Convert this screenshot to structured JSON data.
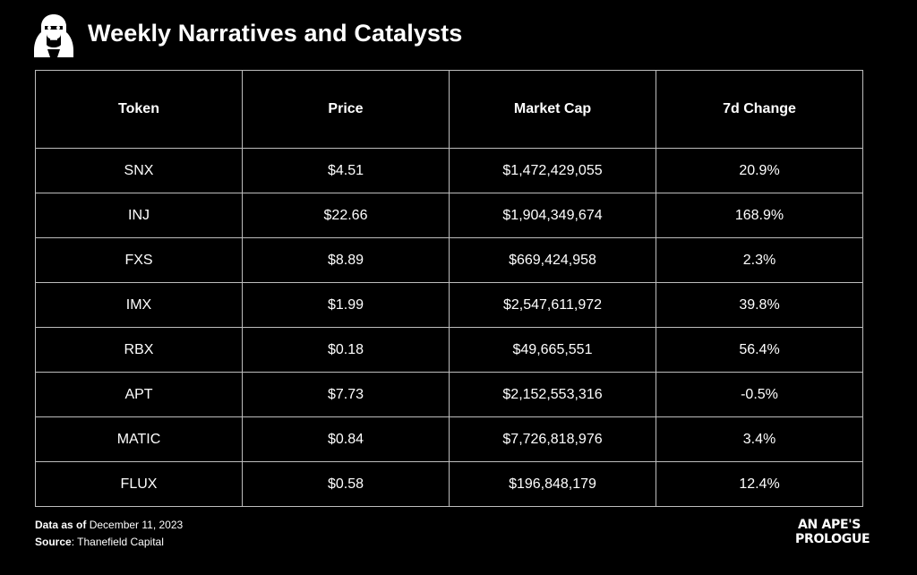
{
  "header": {
    "title": "Weekly Narratives and Catalysts"
  },
  "table": {
    "columns": [
      "Token",
      "Price",
      "Market Cap",
      "7d Change"
    ],
    "rows": [
      [
        "SNX",
        "$4.51",
        "$1,472,429,055",
        "20.9%"
      ],
      [
        "INJ",
        "$22.66",
        "$1,904,349,674",
        "168.9%"
      ],
      [
        "FXS",
        "$8.89",
        "$669,424,958",
        "2.3%"
      ],
      [
        "IMX",
        "$1.99",
        "$2,547,611,972",
        "39.8%"
      ],
      [
        "RBX",
        "$0.18",
        "$49,665,551",
        "56.4%"
      ],
      [
        "APT",
        "$7.73",
        "$2,152,553,316",
        "-0.5%"
      ],
      [
        "MATIC",
        "$0.84",
        "$7,726,818,976",
        "3.4%"
      ],
      [
        "FLUX",
        "$0.58",
        "$196,848,179",
        "12.4%"
      ]
    ]
  },
  "footer": {
    "date_label": "Data as of",
    "date_value": " December 11, 2023",
    "source_label": "Source",
    "source_value": ": Thanefield Capital"
  },
  "brand": {
    "line1": "AN APE'S",
    "line2": "PROLOGUE"
  },
  "icons": {
    "logo": "ape-head-icon"
  },
  "colors": {
    "background": "#000000",
    "text": "#ffffff",
    "grid": "#bdbdbd"
  }
}
